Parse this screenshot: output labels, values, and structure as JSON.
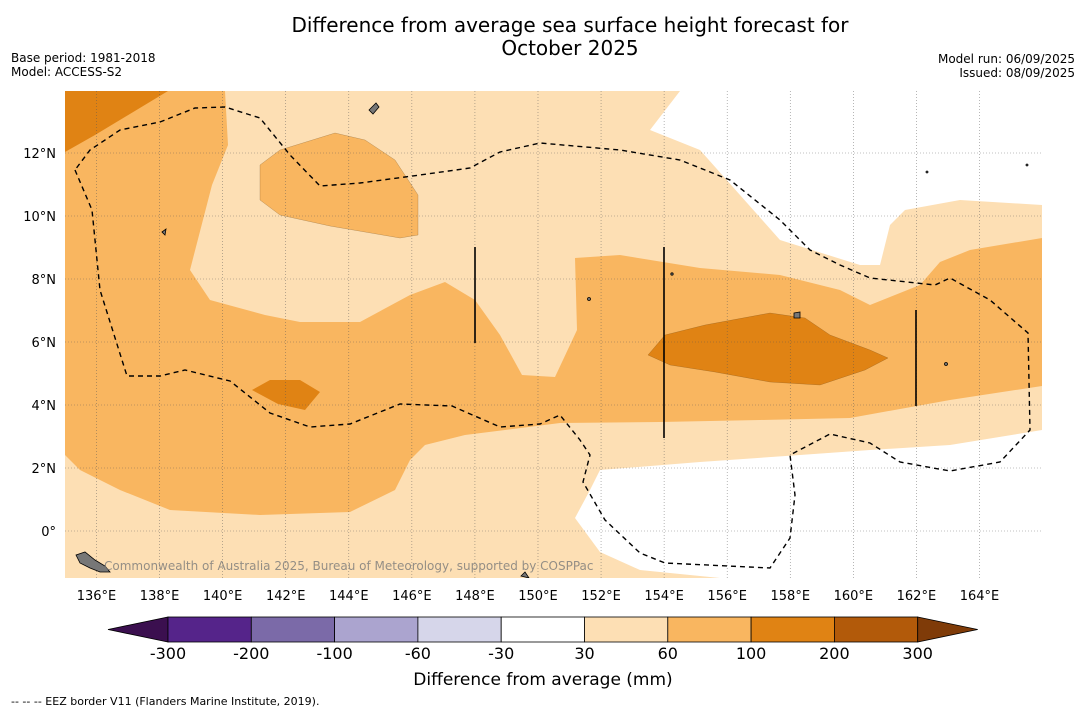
{
  "title_line1": "Difference from average sea surface height forecast for",
  "title_line2": "October 2025",
  "meta_left": [
    "Base period: 1981-2018",
    "Model: ACCESS-S2"
  ],
  "meta_right": [
    "Model run: 06/09/2025",
    "Issued: 08/09/2025"
  ],
  "credit": "Commonwealth of Australia 2025, Bureau of Meteorology, supported by COSPPac",
  "lon_ticks": [
    "136°E",
    "138°E",
    "140°E",
    "142°E",
    "144°E",
    "146°E",
    "148°E",
    "150°E",
    "152°E",
    "154°E",
    "156°E",
    "158°E",
    "160°E",
    "162°E",
    "164°E"
  ],
  "lat_ticks": [
    "12°N",
    "10°N",
    "8°N",
    "6°N",
    "4°N",
    "2°N",
    "0°"
  ],
  "colorbar": {
    "labels": [
      "-300",
      "-200",
      "-100",
      "-60",
      "-30",
      "30",
      "60",
      "100",
      "200",
      "300"
    ],
    "colors": [
      "#3b0f4f",
      "#55248a",
      "#7b6aa8",
      "#aba4cf",
      "#d6d6ea",
      "#ffffff",
      "#fddfb4",
      "#f9b660",
      "#e08314",
      "#b25a0a",
      "#7f3b08"
    ],
    "title": "Difference from average (mm)"
  },
  "footnote": "--  --  -- EEZ border V11 (Flanders Marine Institute, 2019)."
}
